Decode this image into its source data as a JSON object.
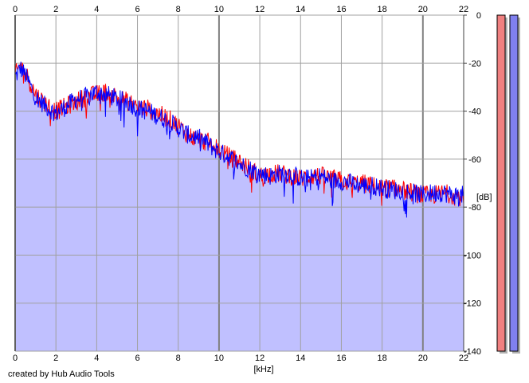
{
  "chart_data": {
    "type": "area",
    "x_axis": {
      "label": "[kHz]",
      "range": [
        0,
        22
      ],
      "ticks": [
        0,
        2,
        4,
        6,
        8,
        10,
        12,
        14,
        16,
        18,
        20,
        22
      ],
      "tick_labels": [
        "0",
        "2",
        "4",
        "6",
        "8",
        "10",
        "12",
        "14",
        "16",
        "18",
        "20",
        "22"
      ]
    },
    "y_axis": {
      "label": "[dB]",
      "range": [
        -140,
        0
      ],
      "ticks": [
        0,
        -20,
        -40,
        -60,
        -80,
        -100,
        -120,
        -140
      ],
      "tick_labels": [
        "0",
        "-20",
        "-40",
        "-60",
        "-80",
        "-100",
        "-120",
        "-140"
      ]
    },
    "grid": true,
    "series": [
      {
        "color": "#ff0000",
        "x": [
          0,
          0.25,
          0.5,
          1,
          1.5,
          2,
          2.5,
          3,
          3.5,
          4,
          4.5,
          5,
          5.5,
          6,
          6.5,
          7,
          7.5,
          8,
          8.5,
          9,
          9.5,
          10,
          10.5,
          11,
          11.5,
          12,
          12.5,
          13,
          13.5,
          14,
          14.5,
          15,
          15.5,
          16,
          16.5,
          17,
          17.5,
          18,
          18.5,
          19,
          19.5,
          20,
          20.5,
          21,
          21.5,
          22
        ],
        "values": [
          -25,
          -21,
          -24,
          -33,
          -37,
          -40,
          -38,
          -36,
          -34,
          -33,
          -32,
          -34,
          -36,
          -38,
          -39,
          -41,
          -43,
          -46,
          -50,
          -52,
          -53,
          -56,
          -59,
          -61,
          -64,
          -67,
          -66,
          -66,
          -67,
          -68,
          -67,
          -67,
          -68,
          -69,
          -70,
          -70,
          -71,
          -72,
          -72,
          -73,
          -74,
          -75,
          -75,
          -74,
          -75,
          -76
        ]
      },
      {
        "color": "#0000ff",
        "x": [
          0,
          0.25,
          0.5,
          1,
          1.5,
          2,
          2.5,
          3,
          3.5,
          4,
          4.5,
          5,
          5.5,
          6,
          6.5,
          7,
          7.5,
          8,
          8.5,
          9,
          9.5,
          10,
          10.5,
          11,
          11.5,
          12,
          12.5,
          13,
          13.5,
          14,
          14.5,
          15,
          15.5,
          16,
          16.5,
          17,
          17.5,
          18,
          18.5,
          19,
          19.5,
          20,
          20.5,
          21,
          21.5,
          22
        ],
        "values": [
          -26,
          -22,
          -25,
          -34,
          -38,
          -41,
          -38,
          -35,
          -34,
          -32,
          -33,
          -35,
          -36,
          -39,
          -40,
          -42,
          -44,
          -47,
          -50,
          -51,
          -54,
          -57,
          -59,
          -62,
          -64,
          -66,
          -67,
          -66,
          -66,
          -68,
          -68,
          -67,
          -69,
          -69,
          -70,
          -71,
          -71,
          -72,
          -73,
          -73,
          -74,
          -75,
          -74,
          -74,
          -75,
          -75
        ]
      }
    ],
    "fill_color": "#c0c0ff",
    "level_meters": [
      {
        "color": "#f08080",
        "level": 1.0
      },
      {
        "color": "#8080f0",
        "level": 1.0
      }
    ]
  },
  "footer": {
    "credit": "created by Hub Audio Tools"
  }
}
